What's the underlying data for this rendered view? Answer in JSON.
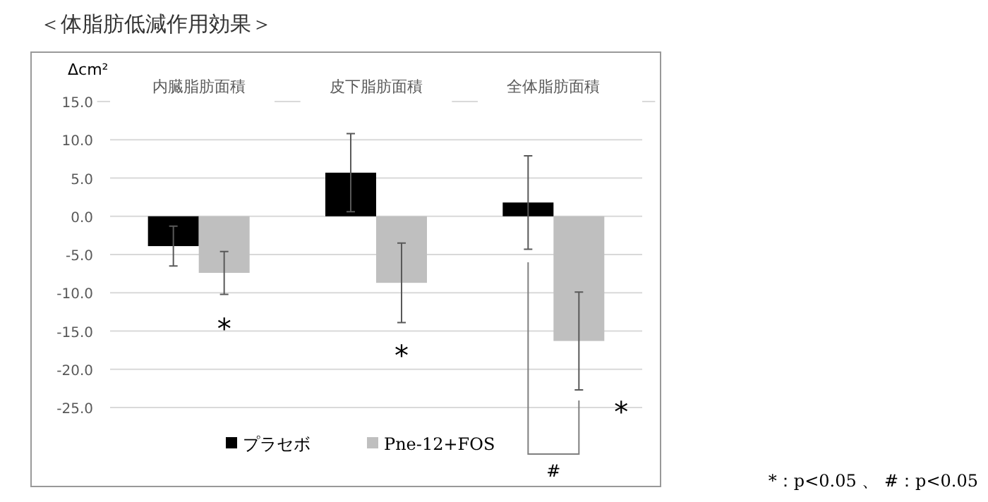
{
  "chart_data": {
    "type": "bar",
    "title": "＜体脂肪低減作用効果＞",
    "ylabel": "Δcm²",
    "categories": [
      "内臓脂肪面積",
      "皮下脂肪面積",
      "全体脂肪面積"
    ],
    "series": [
      {
        "name": "プラセボ",
        "color": "#000000",
        "values": [
          -3.9,
          5.7,
          1.8
        ],
        "errors": [
          2.6,
          5.1,
          6.1
        ]
      },
      {
        "name": "Pne-12+FOS",
        "color": "#bfbfbf",
        "values": [
          -7.4,
          -8.7,
          -16.3
        ],
        "errors": [
          2.8,
          5.2,
          6.4
        ]
      }
    ],
    "ylim": [
      -25,
      15
    ],
    "yticks": [
      {
        "value": -25,
        "label": "-25.0"
      },
      {
        "value": -20,
        "label": "-20.0"
      },
      {
        "value": -15,
        "label": "-15.0"
      },
      {
        "value": -10,
        "label": "-10.0"
      },
      {
        "value": -5,
        "label": "-5.0"
      },
      {
        "value": 0,
        "label": "0.0"
      },
      {
        "value": 5,
        "label": "5.0"
      },
      {
        "value": 10,
        "label": "10.0"
      },
      {
        "value": 15,
        "label": "15.0"
      }
    ],
    "grid": "y",
    "legend": "bottom",
    "annotations": [
      "*",
      "*",
      "*",
      "#",
      "*：p<0.05 、 #：p<0.05"
    ]
  }
}
